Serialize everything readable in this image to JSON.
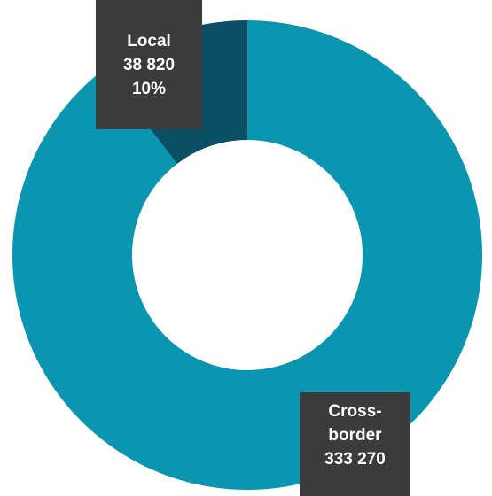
{
  "chart_data": {
    "type": "pie",
    "variant": "donut",
    "colors": {
      "Local": "#0a4f63",
      "Cross-border": "#0a96b1",
      "callout_bg": "#3b3b3b"
    },
    "slices": [
      {
        "label": "Local",
        "value": 38820,
        "value_text": "38 820",
        "percent_text": "10%"
      },
      {
        "label": "Cross-border",
        "label_line1": "Cross-",
        "label_line2": "border",
        "value": 333270,
        "value_text": "333 270"
      }
    ]
  }
}
